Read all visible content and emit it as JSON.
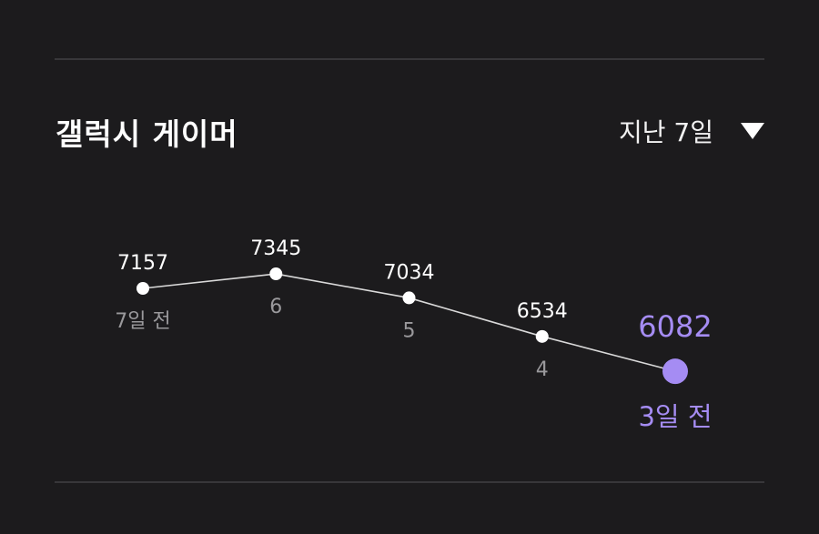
{
  "card": {
    "title": "갤럭시 게이머"
  },
  "period_selector": {
    "label": "지난 7일",
    "icon": "caret-down-icon"
  },
  "colors": {
    "background": "#1c1b1d",
    "accent": "#a58cf3",
    "line": "#d9d9d9",
    "muted": "#9a999c"
  },
  "chart_data": {
    "type": "line",
    "categories": [
      "7일 전",
      "6",
      "5",
      "4",
      "3일 전"
    ],
    "series": [
      {
        "values": [
          7157,
          7345,
          7034,
          6534,
          6082
        ]
      }
    ],
    "value_labels": [
      "7157",
      "7345",
      "7034",
      "6534",
      "6082"
    ],
    "highlight_index": 4,
    "ylim": [
      5600,
      7900
    ],
    "grid": false,
    "title": "",
    "xlabel": "",
    "ylabel": ""
  }
}
